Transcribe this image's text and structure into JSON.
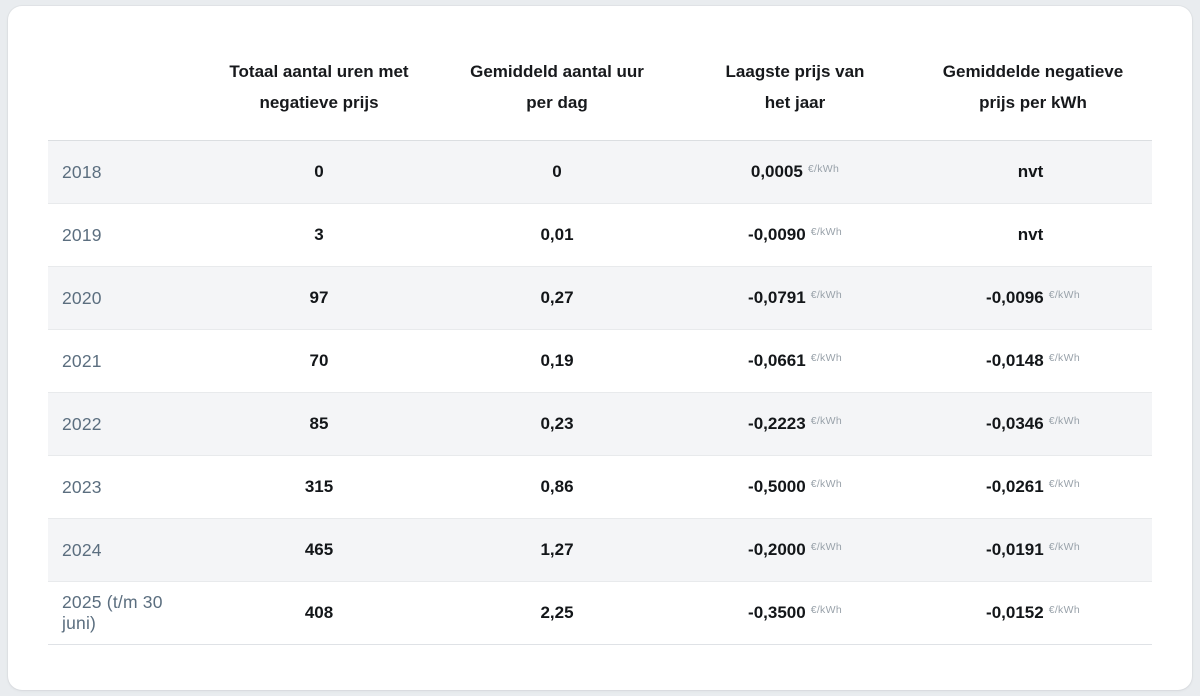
{
  "colors": {
    "page_background": "#e9ecef",
    "card_background": "#ffffff",
    "row_stripe": "#f4f5f7",
    "year_text": "#5b6e7f",
    "value_text": "#131619",
    "unit_text": "#99a2aa"
  },
  "header": {
    "columns": [
      {
        "line1": "Totaal aantal uren met",
        "line2": "negatieve prijs"
      },
      {
        "line1": "Gemiddeld aantal uur",
        "line2": "per dag"
      },
      {
        "line1": "Laagste prijs van",
        "line2": "het jaar"
      },
      {
        "line1": "Gemiddelde negatieve",
        "line2": "prijs per kWh"
      }
    ]
  },
  "rows": [
    {
      "year": "2018",
      "total": "0",
      "avg_day": "0",
      "lowest": "0,0005",
      "lowest_unit": "€/kWh",
      "avg_neg": "nvt",
      "avg_neg_unit": ""
    },
    {
      "year": "2019",
      "total": "3",
      "avg_day": "0,01",
      "lowest": "-0,0090",
      "lowest_unit": "€/kWh",
      "avg_neg": "nvt",
      "avg_neg_unit": ""
    },
    {
      "year": "2020",
      "total": "97",
      "avg_day": "0,27",
      "lowest": "-0,0791",
      "lowest_unit": "€/kWh",
      "avg_neg": "-0,0096",
      "avg_neg_unit": "€/kWh"
    },
    {
      "year": "2021",
      "total": "70",
      "avg_day": "0,19",
      "lowest": "-0,0661",
      "lowest_unit": "€/kWh",
      "avg_neg": "-0,0148",
      "avg_neg_unit": "€/kWh"
    },
    {
      "year": "2022",
      "total": "85",
      "avg_day": "0,23",
      "lowest": "-0,2223",
      "lowest_unit": "€/kWh",
      "avg_neg": "-0,0346",
      "avg_neg_unit": "€/kWh"
    },
    {
      "year": "2023",
      "total": "315",
      "avg_day": "0,86",
      "lowest": "-0,5000",
      "lowest_unit": "€/kWh",
      "avg_neg": "-0,0261",
      "avg_neg_unit": "€/kWh"
    },
    {
      "year": "2024",
      "total": "465",
      "avg_day": "1,27",
      "lowest": "-0,2000",
      "lowest_unit": "€/kWh",
      "avg_neg": "-0,0191",
      "avg_neg_unit": "€/kWh"
    },
    {
      "year": "2025 (t/m 30 juni)",
      "total": "408",
      "avg_day": "2,25",
      "lowest": "-0,3500",
      "lowest_unit": "€/kWh",
      "avg_neg": "-0,0152",
      "avg_neg_unit": "€/kWh"
    }
  ],
  "chart_data": {
    "type": "table",
    "columns": [
      "",
      "Totaal aantal uren met negatieve prijs",
      "Gemiddeld aantal uur per dag",
      "Laagste prijs van het jaar",
      "Gemiddelde negatieve prijs per kWh"
    ],
    "rows": [
      [
        "2018",
        "0",
        "0",
        "0,0005 €/kWh",
        "nvt"
      ],
      [
        "2019",
        "3",
        "0,01",
        "-0,0090 €/kWh",
        "nvt"
      ],
      [
        "2020",
        "97",
        "0,27",
        "-0,0791 €/kWh",
        "-0,0096 €/kWh"
      ],
      [
        "2021",
        "70",
        "0,19",
        "-0,0661 €/kWh",
        "-0,0148 €/kWh"
      ],
      [
        "2022",
        "85",
        "0,23",
        "-0,2223 €/kWh",
        "-0,0346 €/kWh"
      ],
      [
        "2023",
        "315",
        "0,86",
        "-0,5000 €/kWh",
        "-0,0261 €/kWh"
      ],
      [
        "2024",
        "465",
        "1,27",
        "-0,2000 €/kWh",
        "-0,0191 €/kWh"
      ],
      [
        "2025 (t/m 30 juni)",
        "408",
        "2,25",
        "-0,3500 €/kWh",
        "-0,0152 €/kWh"
      ]
    ]
  }
}
